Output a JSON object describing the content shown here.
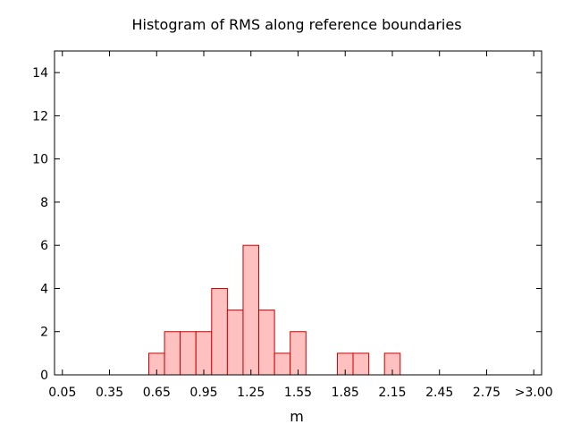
{
  "chart_data": {
    "type": "bar",
    "title": "Histogram of RMS along reference boundaries",
    "xlabel": "m",
    "ylabel": "",
    "ylim": [
      0,
      15
    ],
    "y_ticks": [
      0,
      2,
      4,
      6,
      8,
      10,
      12,
      14
    ],
    "x_tick_labels": [
      "0.05",
      "0.35",
      "0.65",
      "0.95",
      "1.25",
      "1.55",
      "1.85",
      "2.15",
      "2.45",
      "2.75",
      ">3.00"
    ],
    "bin_width": 0.1,
    "bars": [
      {
        "x": 0.65,
        "value": 1
      },
      {
        "x": 0.75,
        "value": 2
      },
      {
        "x": 0.85,
        "value": 2
      },
      {
        "x": 0.95,
        "value": 2
      },
      {
        "x": 1.05,
        "value": 4
      },
      {
        "x": 1.15,
        "value": 3
      },
      {
        "x": 1.25,
        "value": 6
      },
      {
        "x": 1.35,
        "value": 3
      },
      {
        "x": 1.45,
        "value": 1
      },
      {
        "x": 1.55,
        "value": 2
      },
      {
        "x": 1.85,
        "value": 1
      },
      {
        "x": 1.95,
        "value": 1
      },
      {
        "x": 2.15,
        "value": 1
      }
    ],
    "bar_fill": "#ffc0c0",
    "bar_stroke": "#cc0000",
    "grid": false,
    "legend": "none"
  }
}
